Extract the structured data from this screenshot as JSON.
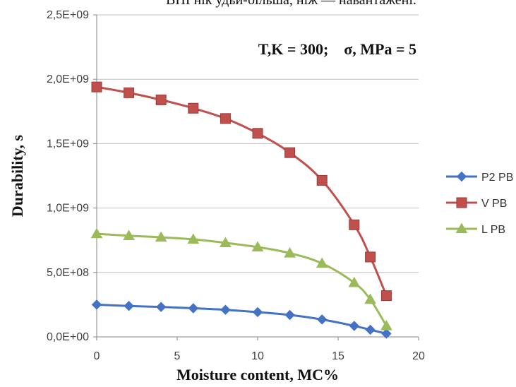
{
  "header_text": "ВНІ нік удьи-більша, ніж — навантажені.",
  "chart_data": {
    "type": "line",
    "xlabel": "Moisture content, MC%",
    "ylabel": "Durability,  s",
    "annotation": "T,K = 300;    σ, MPa = 5",
    "xlim": [
      0,
      20
    ],
    "ylim": [
      0,
      2500000000
    ],
    "x_ticks": [
      0,
      5,
      10,
      15,
      20
    ],
    "x_tick_labels": [
      "0",
      "5",
      "10",
      "15",
      "20"
    ],
    "y_ticks": [
      0,
      500000000,
      1000000000,
      1500000000,
      2000000000,
      2500000000
    ],
    "y_tick_labels": [
      "0,0E+00",
      "5,0E+08",
      "1,0E+09",
      "1,5E+09",
      "2,0E+09",
      "2,5E+09"
    ],
    "grid": "horizontal",
    "legend_position": "right",
    "series": [
      {
        "name": "P2 PB",
        "color": "#4472C4",
        "marker": "diamond",
        "x": [
          0,
          2,
          4,
          6,
          8,
          10,
          12,
          14,
          16,
          17,
          18
        ],
        "y": [
          250000000,
          240000000,
          232000000,
          222000000,
          210000000,
          192000000,
          170000000,
          135000000,
          85000000,
          55000000,
          25000000
        ]
      },
      {
        "name": "V PB",
        "color": "#C0504D",
        "marker": "square",
        "x": [
          0,
          2,
          4,
          6,
          8,
          10,
          12,
          14,
          16,
          17,
          18
        ],
        "y": [
          1940000000,
          1895000000,
          1840000000,
          1775000000,
          1695000000,
          1580000000,
          1430000000,
          1215000000,
          870000000,
          620000000,
          320000000
        ]
      },
      {
        "name": "L PB",
        "color": "#9BBB59",
        "marker": "triangle",
        "x": [
          0,
          2,
          4,
          6,
          8,
          10,
          12,
          14,
          16,
          17,
          18
        ],
        "y": [
          800000000,
          785000000,
          773000000,
          757000000,
          730000000,
          697000000,
          650000000,
          570000000,
          420000000,
          290000000,
          85000000
        ]
      }
    ]
  }
}
